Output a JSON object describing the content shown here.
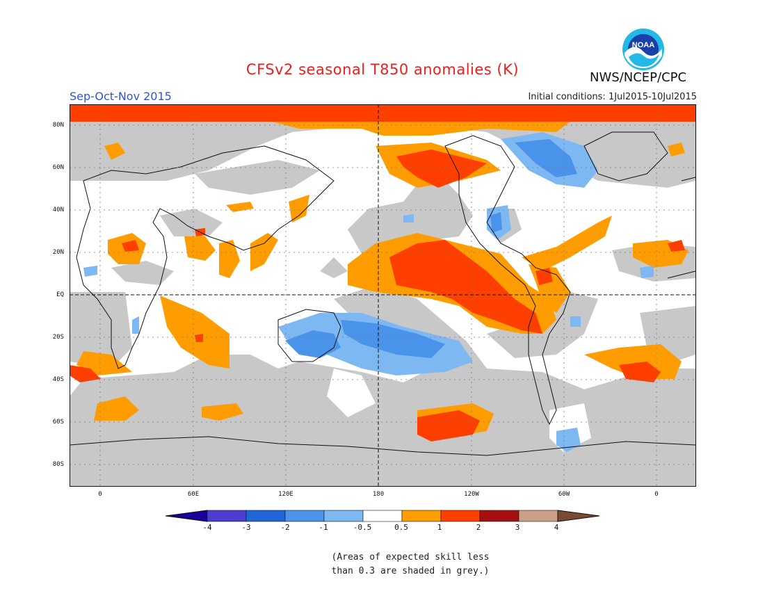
{
  "header": {
    "title": "CFSv2 seasonal T850 anomalies (K)",
    "season": "Sep-Oct-Nov 2015",
    "initial_conditions": "Initial conditions: 1Jul2015-10Jul2015",
    "agency": "NWS/NCEP/CPC",
    "logo_text": "NOAA"
  },
  "map": {
    "lat_labels": [
      "80N",
      "60N",
      "40N",
      "20N",
      "EQ",
      "20S",
      "40S",
      "60S",
      "80S"
    ],
    "lon_labels": [
      "0",
      "60E",
      "120E",
      "180",
      "120W",
      "60W",
      "0"
    ]
  },
  "legend": {
    "labels": [
      "-4",
      "-3",
      "-2",
      "-1",
      "-0.5",
      "0.5",
      "1",
      "2",
      "3",
      "4"
    ],
    "colors": [
      "#1a0099",
      "#4a3fd0",
      "#1f66d8",
      "#4a93ea",
      "#7eb8f2",
      "#ffffff",
      "#ff9d00",
      "#ff3f00",
      "#a51010",
      "#cc9e88",
      "#7a4a33"
    ]
  },
  "footnote": {
    "line1": "(Areas of expected skill less",
    "line2": "than 0.3 are shaded in grey.)"
  },
  "colors": {
    "grey_skill": "#c8c8c8",
    "title_red": "#e8201f",
    "season_blue": "#2a55e0"
  }
}
